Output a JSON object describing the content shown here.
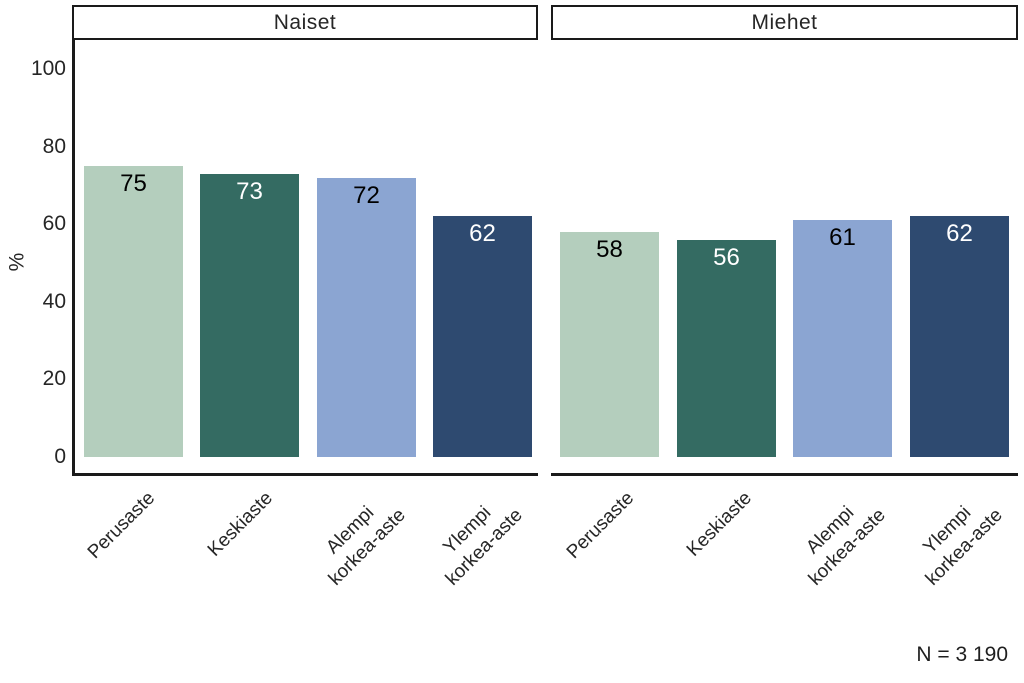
{
  "chart_data": {
    "type": "bar",
    "title": "",
    "ylabel": "%",
    "ylim": [
      0,
      100
    ],
    "yticks": [
      0,
      20,
      40,
      60,
      80,
      100
    ],
    "grid": "off",
    "legend": "none",
    "categories": [
      "Perusaste",
      "Keskiaste",
      "Alempi\nkorkea-aste",
      "Ylempi\nkorkea-aste"
    ],
    "facets": [
      {
        "label": "Naiset",
        "values": [
          75,
          73,
          72,
          62
        ]
      },
      {
        "label": "Miehet",
        "values": [
          58,
          56,
          61,
          62
        ]
      }
    ],
    "bar_colors": [
      "#b4cebd",
      "#346b62",
      "#8ba5d2",
      "#2e4a70"
    ],
    "value_label_colors": [
      "#000000",
      "#ffffff",
      "#000000",
      "#ffffff"
    ],
    "note": "N = 3 190"
  },
  "colors": {
    "axis_line": "#1a1a1a",
    "text": "#262626",
    "background": "#ffffff"
  }
}
